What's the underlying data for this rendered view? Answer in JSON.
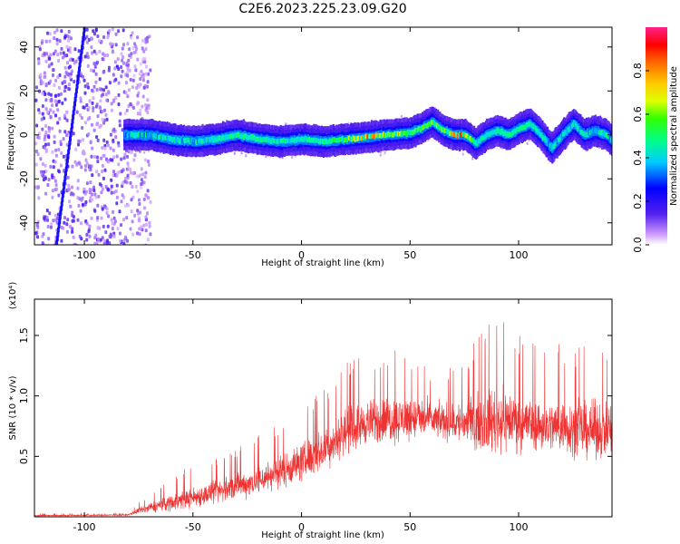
{
  "title": "C2E6.2023.225.23.09.G20",
  "colorbar": {
    "label": "Normalized spectral amplitude",
    "ticks": [
      "0.0",
      "0.2",
      "0.4",
      "0.6",
      "0.8"
    ]
  },
  "chart_data": [
    {
      "type": "heatmap",
      "xlabel": "Height of straight line (km)",
      "ylabel": "Frequency (Hz)",
      "xlim": [
        -123,
        143
      ],
      "ylim": [
        -50,
        49
      ],
      "x_ticks": [
        "-100",
        "-50",
        "0",
        "50",
        "100"
      ],
      "y_ticks": [
        "-40",
        "-20",
        "0",
        "20",
        "40"
      ],
      "ridge": {
        "x": [
          -82,
          -70,
          -60,
          -50,
          -40,
          -30,
          -20,
          -10,
          0,
          10,
          20,
          30,
          40,
          50,
          55,
          60,
          65,
          70,
          75,
          80,
          85,
          90,
          95,
          100,
          105,
          110,
          115,
          120,
          125,
          130,
          135,
          140,
          143
        ],
        "freq": [
          0,
          0,
          -2,
          -3,
          -2,
          0,
          -2,
          -3,
          -2,
          -3,
          -2,
          -1,
          0,
          1,
          3,
          6,
          2,
          0,
          0,
          -4,
          0,
          2,
          0,
          3,
          5,
          0,
          -6,
          0,
          5,
          0,
          2,
          0,
          -3
        ],
        "peak_amplitude": [
          0.35,
          0.4,
          0.45,
          0.4,
          0.45,
          0.55,
          0.5,
          0.45,
          0.5,
          0.5,
          0.6,
          0.9,
          0.7,
          0.6,
          0.6,
          0.7,
          0.6,
          0.9,
          0.9,
          0.45,
          0.5,
          0.5,
          0.5,
          0.55,
          0.5,
          0.45,
          0.4,
          0.45,
          0.45,
          0.45,
          0.4,
          0.4,
          0.4
        ]
      },
      "diagonal_streak": {
        "x": [
          -113,
          -100
        ],
        "freq": [
          -50,
          49
        ]
      }
    },
    {
      "type": "line",
      "xlabel": "Height of straight line (km)",
      "ylabel": "SNR (10 * v/v)",
      "scale_label": "(x10⁴)",
      "xlim": [
        -123,
        143
      ],
      "ylim": [
        0,
        1.8
      ],
      "x_ticks": [
        "-100",
        "-50",
        "0",
        "50",
        "100"
      ],
      "y_ticks": [
        "0.5",
        "1.0",
        "1.5"
      ],
      "color": "#ee3333",
      "series": [
        {
          "x": [
            -123,
            -80,
            -75,
            -60,
            -40,
            -20,
            0,
            10,
            20,
            30,
            40,
            50,
            60,
            70,
            80,
            90,
            100,
            110,
            120,
            130,
            143
          ],
          "mean": [
            0.01,
            0.015,
            0.05,
            0.12,
            0.2,
            0.3,
            0.45,
            0.55,
            0.7,
            0.78,
            0.8,
            0.82,
            0.8,
            0.78,
            0.78,
            0.8,
            0.8,
            0.75,
            0.75,
            0.72,
            0.72
          ],
          "max": [
            0.03,
            0.03,
            0.13,
            0.35,
            0.5,
            0.68,
            0.95,
            1.1,
            1.28,
            1.35,
            1.42,
            1.4,
            1.25,
            1.3,
            1.45,
            1.7,
            1.55,
            1.4,
            1.45,
            1.45,
            1.45
          ]
        }
      ]
    }
  ]
}
